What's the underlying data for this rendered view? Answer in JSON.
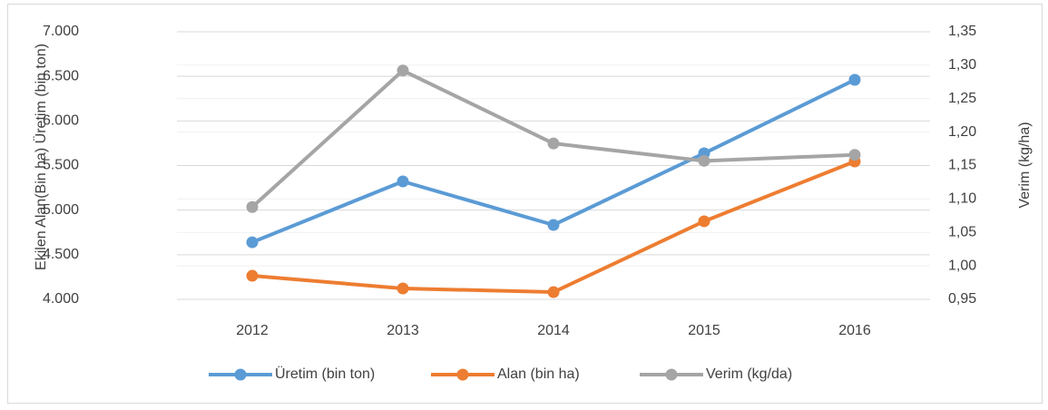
{
  "chart_data": {
    "type": "line",
    "categories": [
      "2012",
      "2013",
      "2014",
      "2015",
      "2016"
    ],
    "series": [
      {
        "name": "Üretim (bin ton)",
        "color": "#5b9bd5",
        "values": [
          4640,
          5322,
          4834,
          5637,
          6461
        ]
      },
      {
        "name": "Alan (bin ha)",
        "color": "#ed7d31",
        "values": [
          4264,
          4122,
          4081,
          4875,
          5546
        ]
      },
      {
        "name": "Verim (kg/da)",
        "color": "#a5a5a5",
        "axis": "y2",
        "values": [
          1.088,
          1.292,
          1.183,
          1.157,
          1.166
        ]
      }
    ],
    "y_label": "Ekilen Alan(Bin ha) Üretim (bin ton)",
    "y2_label": "Verim (kg/ha)",
    "ylim": [
      4000,
      7000
    ],
    "yticks": [
      {
        "value": 4000,
        "label": "4.000"
      },
      {
        "value": 4500,
        "label": "4.500"
      },
      {
        "value": 5000,
        "label": "5.000"
      },
      {
        "value": 5500,
        "label": "5.500"
      },
      {
        "value": 6000,
        "label": "6.000"
      },
      {
        "value": 6500,
        "label": "6.500"
      },
      {
        "value": 7000,
        "label": "7.000"
      }
    ],
    "y2lim": [
      0.95,
      1.35
    ],
    "y2ticks": [
      {
        "value": 0.95,
        "label": "0,95"
      },
      {
        "value": 1.0,
        "label": "1,00"
      },
      {
        "value": 1.05,
        "label": "1,05"
      },
      {
        "value": 1.1,
        "label": "1,10"
      },
      {
        "value": 1.15,
        "label": "1,15"
      },
      {
        "value": 1.2,
        "label": "1,20"
      },
      {
        "value": 1.25,
        "label": "1,25"
      },
      {
        "value": 1.3,
        "label": "1,30"
      },
      {
        "value": 1.35,
        "label": "1,35"
      }
    ],
    "grid": true,
    "legend": "bottom"
  }
}
